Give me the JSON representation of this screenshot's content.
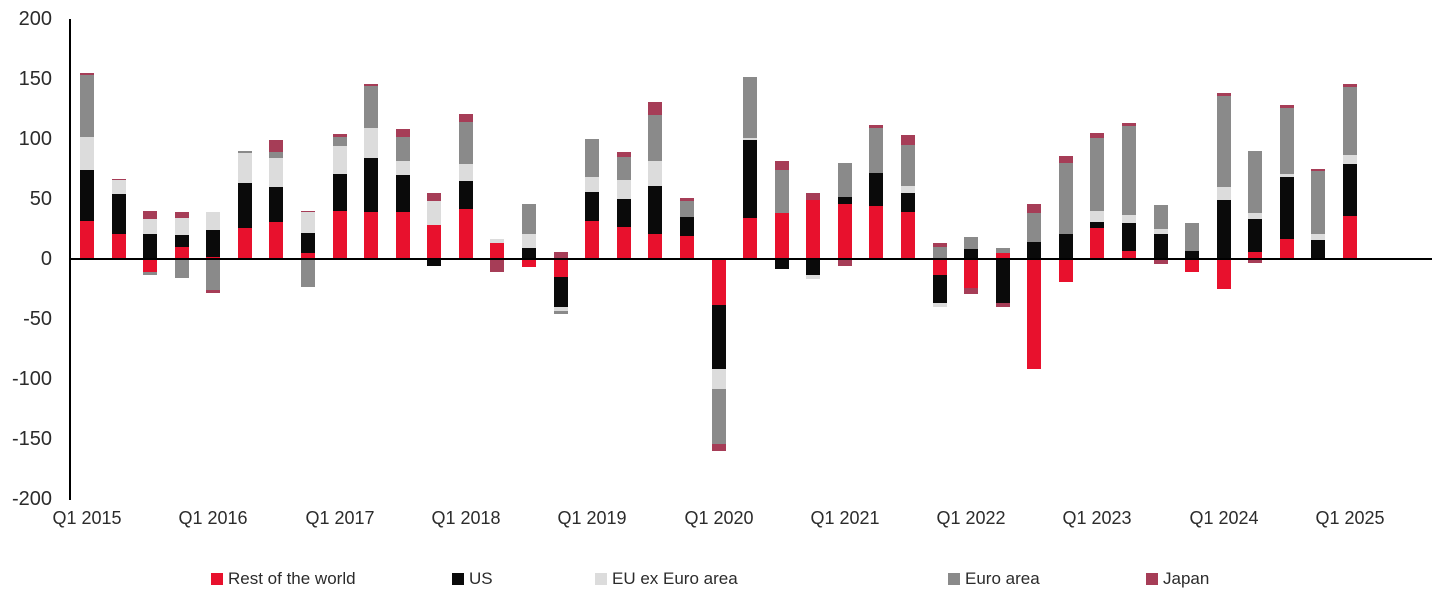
{
  "chart_data": {
    "type": "bar",
    "stacked": true,
    "title": "",
    "categories": [
      "Q1 2015",
      "Q2 2015",
      "Q3 2015",
      "Q4 2015",
      "Q1 2016",
      "Q2 2016",
      "Q3 2016",
      "Q4 2016",
      "Q1 2017",
      "Q2 2017",
      "Q3 2017",
      "Q4 2017",
      "Q1 2018",
      "Q2 2018",
      "Q3 2018",
      "Q4 2018",
      "Q1 2019",
      "Q2 2019",
      "Q3 2019",
      "Q4 2019",
      "Q1 2020",
      "Q2 2020",
      "Q3 2020",
      "Q4 2020",
      "Q1 2021",
      "Q2 2021",
      "Q3 2021",
      "Q4 2021",
      "Q1 2022",
      "Q2 2022",
      "Q3 2022",
      "Q4 2022",
      "Q1 2023",
      "Q2 2023",
      "Q3 2023",
      "Q4 2023",
      "Q1 2024",
      "Q2 2024",
      "Q3 2024",
      "Q4 2024",
      "Q1 2025"
    ],
    "x_axis": {
      "shown_ticks": [
        "Q1 2015",
        "Q1 2016",
        "Q1 2017",
        "Q1 2018",
        "Q1 2019",
        "Q1 2020",
        "Q1 2021",
        "Q1 2022",
        "Q1 2023",
        "Q1 2024",
        "Q1 2025"
      ],
      "tick_every_n_bars": 4
    },
    "y_axis": {
      "min": -200,
      "max": 200,
      "tick_step": 50,
      "ticks": [
        200,
        150,
        100,
        50,
        0,
        -50,
        -100,
        -150,
        -200
      ]
    },
    "series": [
      {
        "name": "Rest of the world",
        "color": "#e8112d",
        "values": [
          32,
          21,
          -11,
          10,
          2,
          26,
          31,
          5,
          40,
          39,
          39,
          28,
          42,
          13,
          -7,
          -15,
          32,
          27,
          21,
          19,
          -38,
          34,
          38,
          49,
          46,
          44,
          39,
          -13,
          -24,
          5,
          -92,
          -19,
          26,
          7,
          0,
          -11,
          -25,
          6,
          17,
          0,
          36
        ]
      },
      {
        "name": "US",
        "color": "#0a0a0a",
        "values": [
          42,
          33,
          21,
          10,
          22,
          37,
          29,
          17,
          31,
          45,
          31,
          -6,
          23,
          0,
          9,
          -25,
          24,
          23,
          40,
          16,
          -54,
          65,
          -8,
          -13,
          6,
          28,
          16,
          -24,
          8,
          -37,
          14,
          21,
          5,
          23,
          21,
          7,
          49,
          27,
          51,
          16,
          43
        ]
      },
      {
        "name": "EU ex Euro area",
        "color": "#dcdcdc",
        "values": [
          28,
          12,
          12,
          14,
          15,
          25,
          24,
          17,
          23,
          25,
          12,
          20,
          14,
          4,
          12,
          -3,
          12,
          16,
          21,
          0,
          -16,
          2,
          0,
          -4,
          0,
          0,
          6,
          -3,
          0,
          0,
          0,
          0,
          9,
          7,
          4,
          0,
          11,
          5,
          3,
          5,
          8
        ]
      },
      {
        "name": "Euro area",
        "color": "#8a8a8a",
        "values": [
          51,
          0,
          -2,
          -16,
          -26,
          2,
          5,
          -23,
          8,
          35,
          20,
          0,
          35,
          0,
          25,
          -3,
          32,
          19,
          38,
          13,
          -46,
          51,
          36,
          0,
          28,
          37,
          34,
          10,
          10,
          4,
          24,
          59,
          61,
          74,
          20,
          23,
          76,
          52,
          55,
          52,
          56
        ]
      },
      {
        "name": "Japan",
        "color": "#a63d57",
        "values": [
          2,
          1,
          7,
          5,
          -2,
          0,
          10,
          1,
          2,
          2,
          6,
          7,
          7,
          -11,
          0,
          6,
          0,
          4,
          11,
          3,
          -6,
          0,
          8,
          6,
          -6,
          3,
          8,
          3,
          -5,
          -3,
          8,
          6,
          4,
          2,
          -4,
          0,
          2,
          -3,
          2,
          2,
          3
        ]
      }
    ],
    "legend": {
      "position": "bottom",
      "entries": [
        "Rest of the world",
        "US",
        "EU ex Euro area",
        "Euro area",
        "Japan"
      ]
    }
  },
  "colors": {
    "axis": "#000000",
    "text": "#2b2b2b",
    "background": "#ffffff"
  }
}
